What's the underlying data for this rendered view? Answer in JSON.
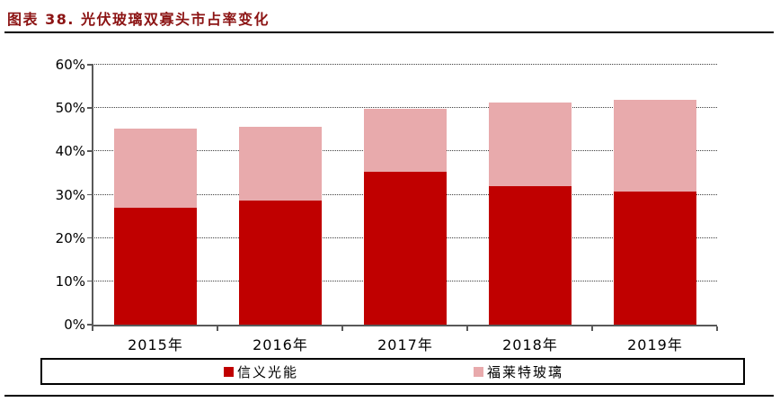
{
  "figure": {
    "title": "图表 38. 光伏玻璃双寡头市占率变化"
  },
  "colors": {
    "title_text": "#8C1414",
    "axis_line": "#595959",
    "gridline": "#404040",
    "rule_line": "#000000"
  },
  "chart_data": {
    "type": "bar",
    "stacked": true,
    "title": "光伏玻璃双寡头市占率变化",
    "categories": [
      "2015年",
      "2016年",
      "2017年",
      "2018年",
      "2019年"
    ],
    "series": [
      {
        "name": "信义光能",
        "color": "#C00000",
        "values": [
          27.0,
          28.7,
          35.2,
          32.0,
          30.8
        ]
      },
      {
        "name": "福莱特玻璃",
        "color": "#E8AAAC",
        "values": [
          18.3,
          17.1,
          14.5,
          19.3,
          21.2
        ]
      }
    ],
    "stack_totals": [
      45.3,
      45.8,
      49.7,
      51.3,
      52.0
    ],
    "xlabel": "",
    "ylabel": "",
    "y_ticks": [
      "0%",
      "10%",
      "20%",
      "30%",
      "40%",
      "50%",
      "60%"
    ],
    "ylim": [
      0,
      60
    ],
    "y_tick_step": 10,
    "grid": "horizontal-dotted",
    "legend_position": "bottom"
  }
}
